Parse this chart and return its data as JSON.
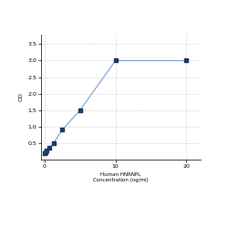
{
  "x": [
    0,
    0.156,
    0.313,
    0.625,
    1.25,
    2.5,
    5,
    10,
    20
  ],
  "y": [
    0.2,
    0.22,
    0.27,
    0.35,
    0.5,
    0.9,
    1.5,
    3.0,
    3.0
  ],
  "xlabel_line1": "Human HNRNPL",
  "xlabel_line2": "Concentration (ng/ml)",
  "ylabel": "OD",
  "xlim": [
    -0.5,
    22
  ],
  "ylim": [
    0.0,
    3.8
  ],
  "yticks": [
    0.5,
    1.0,
    1.5,
    2.0,
    2.5,
    3.0,
    3.5
  ],
  "xticks": [
    0,
    10,
    20
  ],
  "line_color": "#7a9fd4",
  "marker_color": "#1a3a6b",
  "grid_color": "#d0d0d0",
  "bg_color": "#ffffff",
  "fig_bg_color": "#ffffff"
}
